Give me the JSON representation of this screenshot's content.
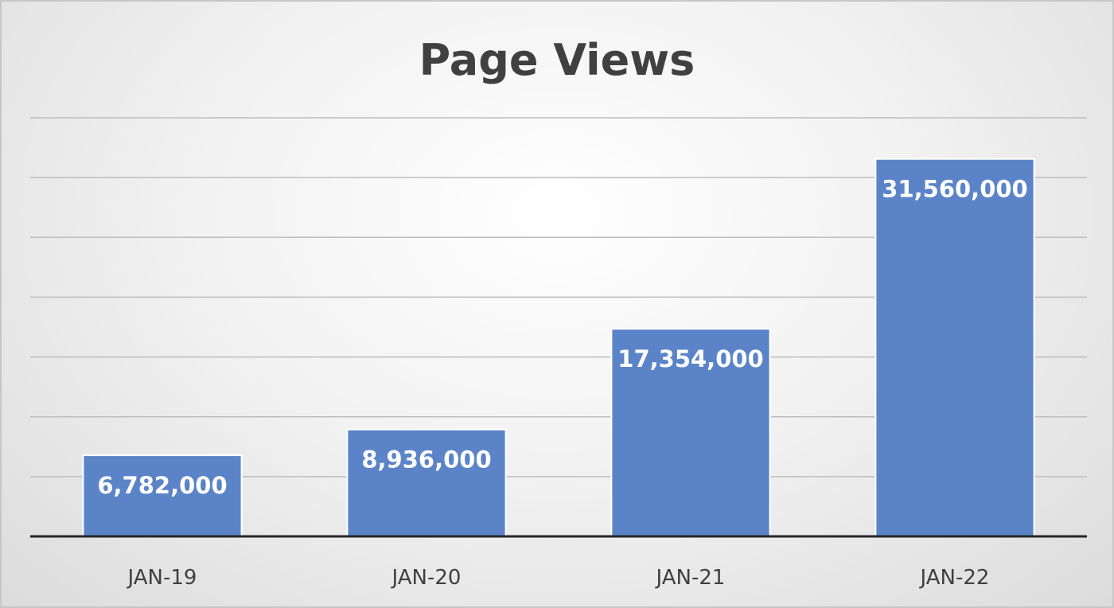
{
  "chart_data": {
    "type": "bar",
    "title": "Page Views",
    "xlabel": "",
    "ylabel": "",
    "categories": [
      "JAN-19",
      "JAN-20",
      "JAN-21",
      "JAN-22"
    ],
    "values": [
      6782000,
      8936000,
      17354000,
      31560000
    ],
    "data_labels": [
      "6,782,000",
      "8,936,000",
      "17,354,000",
      "31,560,000"
    ],
    "ylim": [
      0,
      35000000
    ],
    "y_gridline_step": 5000000,
    "grid": true,
    "y_axis_labels_shown": false,
    "legend": "none",
    "bar_color": "#5b84c8",
    "bar_edge_color": "#ffffff"
  }
}
